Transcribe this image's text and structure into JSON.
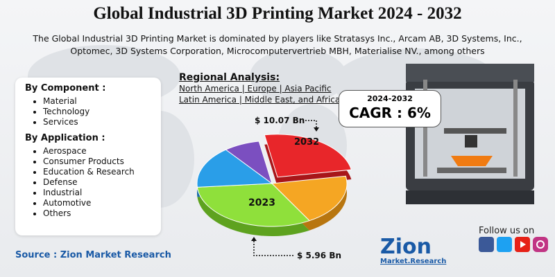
{
  "header": {
    "title": "Global Industrial 3D Printing Market 2024 - 2032",
    "subtitle": [
      "The Global Industrial 3D Printing Market is dominated by players like Stratasys Inc., Arcam AB, 3D Systems, Inc.,",
      "Optomec, 3D Systems Corporation, Microcomputervertrieb MBH, Materialise NV., among others"
    ]
  },
  "segments": [
    {
      "heading": "By Component :",
      "items": [
        "Material",
        "Technology",
        "Services"
      ]
    },
    {
      "heading": "By Application :",
      "items": [
        "Aerospace",
        "Consumer Products",
        "Education & Research",
        "Defense",
        "Industrial",
        "Automotive",
        "Others"
      ]
    }
  ],
  "regional": {
    "heading": "Regional Analysis:",
    "lines": [
      "North America | Europe | Asia Pacific",
      "Latin America | Middle East, and Africa"
    ]
  },
  "cagr": {
    "period": "2024-2032",
    "label": "CAGR : 6%"
  },
  "pie": {
    "labels": [
      "2023",
      "2032"
    ],
    "values": [
      "$ 5.96 Bn",
      "$ 10.07 Bn"
    ]
  },
  "source": "Source : Zion Market Research",
  "follow": "Follow us on",
  "logo": {
    "name": "Zion",
    "tagline": "Market.Research"
  }
}
